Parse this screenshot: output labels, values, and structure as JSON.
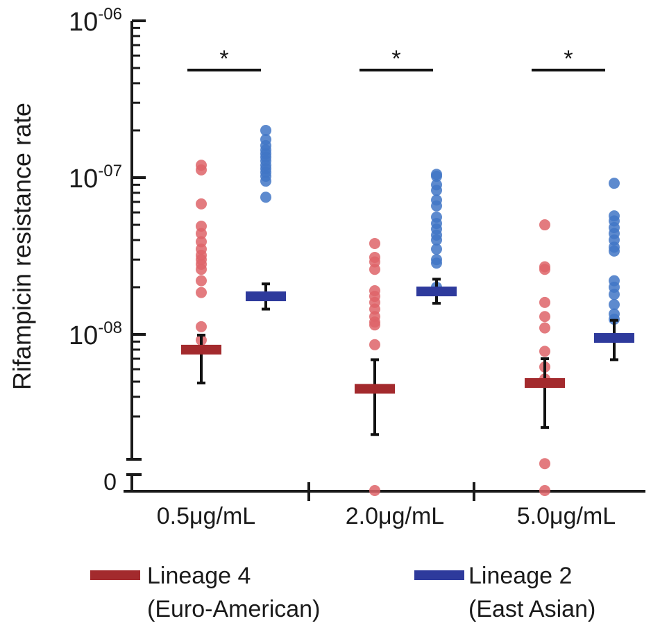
{
  "chart_data": {
    "type": "scatter",
    "ylabel": "Rifampicin resistance rate",
    "y_scale": "log",
    "y_ticks": [
      {
        "value": 1e-08,
        "base": "10",
        "exp": "-08"
      },
      {
        "value": 1e-07,
        "base": "10",
        "exp": "-07"
      },
      {
        "value": 1e-06,
        "base": "10",
        "exp": "-06"
      }
    ],
    "y_zero_label": "0",
    "ylim": [
      2.5e-09,
      1e-06
    ],
    "categories": [
      "0.5μg/mL",
      "2.0μg/mL",
      "5.0μg/mL"
    ],
    "series": [
      {
        "name": "Lineage 4\n(Euro-American)",
        "legend_line1": "Lineage 4",
        "legend_line2": "(Euro-American)",
        "point_color": "#de6468",
        "bar_color": "#a32a2d",
        "groups": [
          {
            "points": [
              1.2e-07,
              1.12e-07,
              6.8e-08,
              4.9e-08,
              4.4e-08,
              3.9e-08,
              3.5e-08,
              3.2e-08,
              3e-08,
              2.8e-08,
              2.6e-08,
              2.2e-08,
              1.85e-08,
              1.12e-08,
              9.2e-09
            ],
            "mean": 8e-09,
            "ci": [
              4.9e-09,
              9.9e-09
            ]
          },
          {
            "points": [
              3.8e-08,
              3.1e-08,
              2.9e-08,
              2.6e-08,
              1.9e-08,
              1.75e-08,
              1.6e-08,
              1.45e-08,
              1.3e-08,
              1.2e-08,
              1.15e-08,
              8.6e-09,
              0
            ],
            "mean": 4.5e-09,
            "ci": [
              2.3e-09,
              6.9e-09
            ]
          },
          {
            "points": [
              5e-08,
              2.7e-08,
              2.6e-08,
              1.6e-08,
              1.3e-08,
              1.1e-08,
              7.8e-09,
              6.2e-09,
              5.2e-09,
              1.5e-09,
              0
            ],
            "mean": 4.9e-09,
            "ci": [
              2.55e-09,
              7e-09
            ]
          }
        ]
      },
      {
        "name": "Lineage 2\n(East Asian)",
        "legend_line1": "Lineage 2",
        "legend_line2": "(East Asian)",
        "point_color": "#4176c6",
        "bar_color": "#2e3a9c",
        "groups": [
          {
            "points": [
              2e-07,
              1.75e-07,
              1.6e-07,
              1.5e-07,
              1.42e-07,
              1.35e-07,
              1.28e-07,
              1.2e-07,
              1.14e-07,
              1.08e-07,
              1.02e-07,
              9.5e-08,
              7.5e-08
            ],
            "mean": 1.75e-08,
            "ci": [
              1.45e-08,
              2.1e-08
            ]
          },
          {
            "points": [
              1.05e-07,
              1.02e-07,
              9e-08,
              8.3e-08,
              7.2e-08,
              6.6e-08,
              5.6e-08,
              5.1e-08,
              4.7e-08,
              4.3e-08,
              4e-08,
              3.5e-08,
              3e-08,
              2.85e-08,
              2e-08
            ],
            "mean": 1.88e-08,
            "ci": [
              1.58e-08,
              2.25e-08
            ]
          },
          {
            "points": [
              9.2e-08,
              5.7e-08,
              5.3e-08,
              4.8e-08,
              4.4e-08,
              4e-08,
              3.6e-08,
              3.4e-08,
              2.2e-08,
              2e-08,
              1.8e-08,
              1.55e-08,
              1.35e-08,
              1.25e-08
            ],
            "mean": 9.5e-09,
            "ci": [
              6.9e-09,
              1.23e-08
            ]
          }
        ]
      }
    ],
    "significance": [
      "*",
      "*",
      "*"
    ],
    "grid": false,
    "legend_position": "bottom"
  }
}
